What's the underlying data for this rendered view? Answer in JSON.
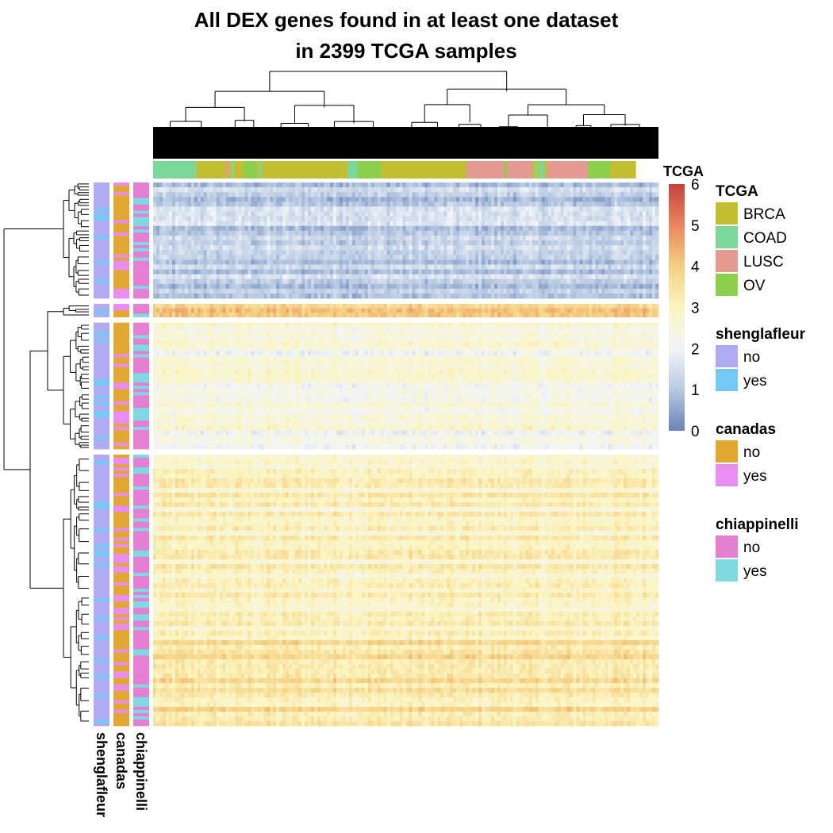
{
  "chart_data": {
    "type": "heatmap",
    "title_lines": [
      "All DEX genes found in at least one dataset",
      "in 2399 TCGA samples"
    ],
    "column_annotation": {
      "name": "TCGA",
      "segments": [
        {
          "group": "COAD",
          "fraction": 0.085
        },
        {
          "group": "BRCA",
          "fraction": 0.06
        },
        {
          "group": "LUSC",
          "fraction": 0.005
        },
        {
          "group": "BRCA",
          "fraction": 0.005
        },
        {
          "group": "COAD",
          "fraction": 0.005
        },
        {
          "group": "BRCA",
          "fraction": 0.02
        },
        {
          "group": "OV",
          "fraction": 0.025
        },
        {
          "group": "BRCA",
          "fraction": 0.005
        },
        {
          "group": "COAD",
          "fraction": 0.005
        },
        {
          "group": "BRCA",
          "fraction": 0.17
        },
        {
          "group": "COAD",
          "fraction": 0.02
        },
        {
          "group": "OV",
          "fraction": 0.045
        },
        {
          "group": "BRCA",
          "fraction": 0.17
        },
        {
          "group": "LUSC",
          "fraction": 0.075
        },
        {
          "group": "OV",
          "fraction": 0.005
        },
        {
          "group": "LUSC",
          "fraction": 0.05
        },
        {
          "group": "BRCA",
          "fraction": 0.005
        },
        {
          "group": "COAD",
          "fraction": 0.005
        },
        {
          "group": "BRCA",
          "fraction": 0.005
        },
        {
          "group": "COAD",
          "fraction": 0.01
        },
        {
          "group": "BRCA",
          "fraction": 0.005
        },
        {
          "group": "LUSC",
          "fraction": 0.08
        },
        {
          "group": "OV",
          "fraction": 0.045
        },
        {
          "group": "BRCA",
          "fraction": 0.05
        }
      ]
    },
    "row_blocks": [
      {
        "id": "block-1",
        "fraction": 0.22,
        "mean_value": 1.2
      },
      {
        "id": "block-2",
        "fraction": 0.025,
        "mean_value": 4.1
      },
      {
        "id": "block-3",
        "fraction": 0.24,
        "mean_value": 2.4
      },
      {
        "id": "block-4",
        "fraction": 0.515,
        "mean_value": 2.95
      }
    ],
    "row_annotations": [
      {
        "name": "shenglafleur",
        "levels": [
          "no",
          "yes"
        ]
      },
      {
        "name": "canadas",
        "levels": [
          "no",
          "yes"
        ]
      },
      {
        "name": "chiappinelli",
        "levels": [
          "no",
          "yes"
        ]
      }
    ],
    "color_scale": {
      "min": 0,
      "max": 6,
      "ticks": [
        0,
        1,
        2,
        3,
        4,
        5,
        6
      ],
      "stops": [
        "#6a83b9",
        "#b7c9e2",
        "#f2f5f8",
        "#fbf5c0",
        "#f5cf80",
        "#e8875f",
        "#c8413a"
      ]
    },
    "legends": [
      {
        "title": "TCGA",
        "items": [
          {
            "label": "BRCA",
            "color": "#c2bf33"
          },
          {
            "label": "COAD",
            "color": "#7ad99a"
          },
          {
            "label": "LUSC",
            "color": "#e59a92"
          },
          {
            "label": "OV",
            "color": "#8ccf4a"
          }
        ]
      },
      {
        "title": "shenglafleur",
        "items": [
          {
            "label": "no",
            "color": "#b0aaf3"
          },
          {
            "label": "yes",
            "color": "#74c8f4"
          }
        ]
      },
      {
        "title": "canadas",
        "items": [
          {
            "label": "no",
            "color": "#e3a72f"
          },
          {
            "label": "yes",
            "color": "#ea8cf2"
          }
        ]
      },
      {
        "title": "chiappinelli",
        "items": [
          {
            "label": "no",
            "color": "#e57fd4"
          },
          {
            "label": "yes",
            "color": "#7fd9e1"
          }
        ]
      }
    ]
  }
}
